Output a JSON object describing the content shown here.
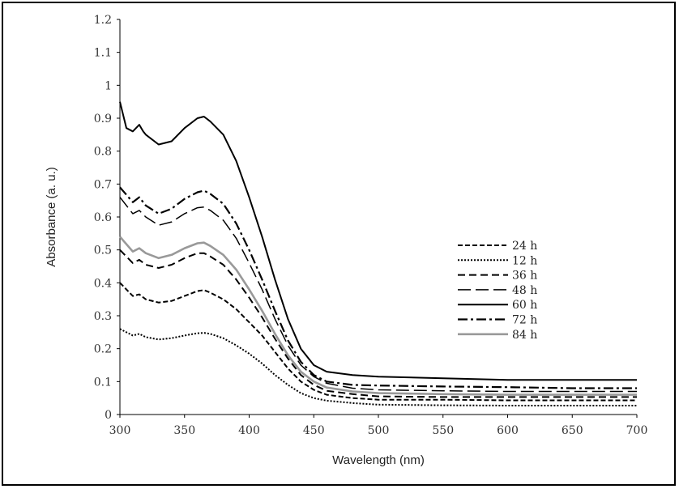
{
  "chart_data": {
    "type": "line",
    "title": "",
    "xlabel": "Wavelength (nm)",
    "ylabel": "Absorbance (a. u.)",
    "xlim": [
      300,
      700
    ],
    "ylim": [
      0,
      1.2
    ],
    "xticks": [
      "300",
      "350",
      "400",
      "450",
      "500",
      "550",
      "600",
      "650",
      "700"
    ],
    "yticks": [
      "0",
      "0.1",
      "0.2",
      "0.3",
      "0.4",
      "0.5",
      "0.6",
      "0.7",
      "0.8",
      "0.9",
      "1",
      "1.1",
      "1.2"
    ],
    "grid": false,
    "legend_position": "right-middle",
    "series": [
      {
        "name": "24 h",
        "style": "short-dash",
        "color": "#000000",
        "x": [
          300,
          310,
          315,
          320,
          330,
          340,
          350,
          360,
          365,
          370,
          380,
          390,
          400,
          410,
          420,
          430,
          440,
          450,
          460,
          480,
          500,
          550,
          600,
          650,
          700
        ],
        "y": [
          0.4,
          0.36,
          0.365,
          0.35,
          0.34,
          0.345,
          0.36,
          0.375,
          0.378,
          0.37,
          0.35,
          0.32,
          0.28,
          0.24,
          0.19,
          0.14,
          0.1,
          0.075,
          0.06,
          0.05,
          0.045,
          0.045,
          0.043,
          0.043,
          0.043
        ]
      },
      {
        "name": "12 h",
        "style": "dotted",
        "color": "#000000",
        "x": [
          300,
          310,
          315,
          320,
          330,
          340,
          350,
          360,
          365,
          370,
          380,
          390,
          400,
          410,
          420,
          430,
          440,
          450,
          460,
          480,
          500,
          550,
          600,
          650,
          700
        ],
        "y": [
          0.26,
          0.24,
          0.245,
          0.235,
          0.228,
          0.232,
          0.24,
          0.247,
          0.248,
          0.245,
          0.232,
          0.21,
          0.185,
          0.155,
          0.12,
          0.09,
          0.065,
          0.05,
          0.042,
          0.035,
          0.03,
          0.028,
          0.027,
          0.027,
          0.027
        ]
      },
      {
        "name": "36 h",
        "style": "dash",
        "color": "#000000",
        "x": [
          300,
          310,
          315,
          320,
          330,
          340,
          350,
          360,
          365,
          370,
          380,
          390,
          400,
          410,
          420,
          430,
          440,
          450,
          460,
          480,
          500,
          550,
          600,
          650,
          700
        ],
        "y": [
          0.5,
          0.46,
          0.47,
          0.455,
          0.445,
          0.455,
          0.475,
          0.49,
          0.49,
          0.48,
          0.455,
          0.41,
          0.355,
          0.295,
          0.23,
          0.17,
          0.12,
          0.09,
          0.072,
          0.062,
          0.055,
          0.053,
          0.053,
          0.053,
          0.053
        ]
      },
      {
        "name": "48 h",
        "style": "long-dash",
        "color": "#000000",
        "x": [
          300,
          310,
          315,
          320,
          330,
          340,
          350,
          360,
          365,
          370,
          380,
          390,
          400,
          410,
          420,
          430,
          440,
          450,
          460,
          480,
          500,
          550,
          600,
          650,
          700
        ],
        "y": [
          0.66,
          0.61,
          0.62,
          0.6,
          0.575,
          0.585,
          0.61,
          0.628,
          0.63,
          0.62,
          0.59,
          0.535,
          0.46,
          0.38,
          0.29,
          0.21,
          0.15,
          0.115,
          0.095,
          0.08,
          0.075,
          0.072,
          0.07,
          0.07,
          0.07
        ]
      },
      {
        "name": "60 h",
        "style": "solid",
        "color": "#000000",
        "x": [
          300,
          305,
          310,
          315,
          318,
          320,
          330,
          340,
          350,
          360,
          365,
          370,
          380,
          390,
          400,
          410,
          420,
          430,
          440,
          450,
          460,
          480,
          500,
          550,
          600,
          650,
          700
        ],
        "y": [
          0.95,
          0.87,
          0.86,
          0.88,
          0.86,
          0.85,
          0.82,
          0.83,
          0.87,
          0.9,
          0.905,
          0.89,
          0.85,
          0.77,
          0.66,
          0.54,
          0.41,
          0.29,
          0.2,
          0.15,
          0.13,
          0.12,
          0.115,
          0.11,
          0.105,
          0.105,
          0.105
        ]
      },
      {
        "name": "72 h",
        "style": "dash-dot",
        "color": "#000000",
        "x": [
          300,
          310,
          315,
          320,
          330,
          340,
          350,
          360,
          365,
          370,
          380,
          390,
          400,
          410,
          420,
          430,
          440,
          450,
          460,
          480,
          500,
          550,
          600,
          650,
          700
        ],
        "y": [
          0.69,
          0.645,
          0.66,
          0.635,
          0.61,
          0.625,
          0.655,
          0.675,
          0.68,
          0.67,
          0.64,
          0.58,
          0.5,
          0.41,
          0.315,
          0.225,
          0.16,
          0.12,
          0.1,
          0.09,
          0.088,
          0.085,
          0.083,
          0.08,
          0.08
        ]
      },
      {
        "name": "84 h",
        "style": "solid",
        "color": "#999999",
        "x": [
          300,
          310,
          315,
          320,
          330,
          340,
          350,
          360,
          365,
          370,
          380,
          390,
          400,
          410,
          420,
          430,
          440,
          450,
          460,
          480,
          500,
          550,
          600,
          650,
          700
        ],
        "y": [
          0.54,
          0.495,
          0.505,
          0.49,
          0.475,
          0.485,
          0.505,
          0.52,
          0.522,
          0.512,
          0.485,
          0.44,
          0.38,
          0.315,
          0.245,
          0.18,
          0.13,
          0.1,
          0.082,
          0.07,
          0.065,
          0.062,
          0.06,
          0.06,
          0.06
        ]
      }
    ]
  }
}
